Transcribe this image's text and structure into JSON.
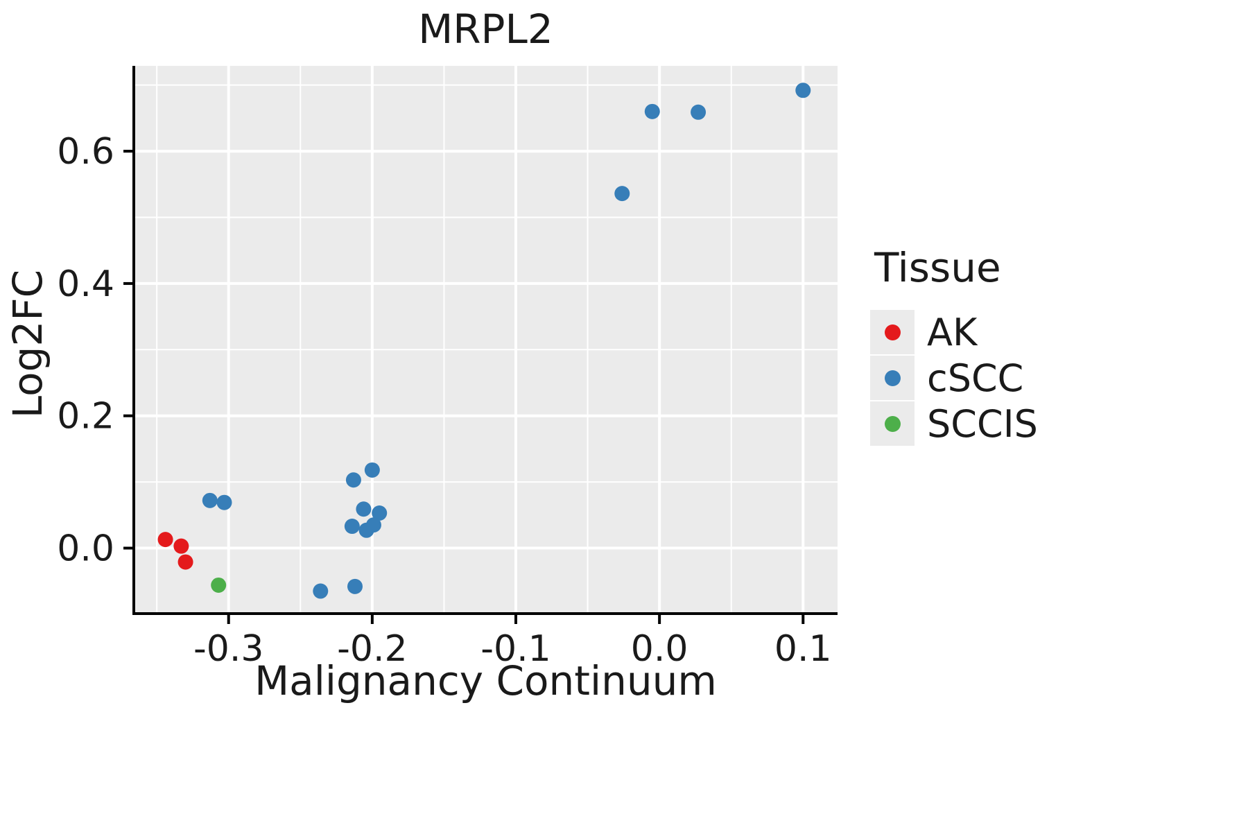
{
  "page": {
    "background": "#FFFFFF",
    "panel_background": "#EBEBEB",
    "grid_color": "#FFFFFF",
    "axis_color": "#000000",
    "text_color": "#1a1a1a"
  },
  "chart_data": {
    "type": "scatter",
    "title": "MRPL2",
    "xlabel": "Malignancy Continuum",
    "ylabel": "Log2FC",
    "legend_title": "Tissue",
    "legend_position": "right",
    "grid": true,
    "xlim": [
      -0.366,
      0.124
    ],
    "ylim": [
      -0.099,
      0.729
    ],
    "x_ticks": [
      -0.3,
      -0.2,
      -0.1,
      0.0,
      0.1
    ],
    "x_tick_labels": [
      "-0.3",
      "-0.2",
      "-0.1",
      "0.0",
      "0.1"
    ],
    "x_minor_ticks": [
      -0.35,
      -0.25,
      -0.15,
      -0.05,
      0.05
    ],
    "y_ticks": [
      0.0,
      0.2,
      0.4,
      0.6
    ],
    "y_tick_labels": [
      "0.0",
      "0.2",
      "0.4",
      "0.6"
    ],
    "y_minor_ticks": [
      0.1,
      0.3,
      0.5,
      0.7
    ],
    "point_radius": 11,
    "series": [
      {
        "name": "AK",
        "color": "#E41A1C",
        "points": [
          [
            -0.344,
            0.013
          ],
          [
            -0.333,
            0.003
          ],
          [
            -0.33,
            -0.021
          ]
        ]
      },
      {
        "name": "cSCC",
        "color": "#377EB8",
        "points": [
          [
            -0.313,
            0.072
          ],
          [
            -0.303,
            0.069
          ],
          [
            -0.236,
            -0.065
          ],
          [
            -0.212,
            -0.058
          ],
          [
            -0.213,
            0.103
          ],
          [
            -0.2,
            0.118
          ],
          [
            -0.206,
            0.059
          ],
          [
            -0.195,
            0.053
          ],
          [
            -0.214,
            0.033
          ],
          [
            -0.204,
            0.027
          ],
          [
            -0.199,
            0.035
          ],
          [
            -0.026,
            0.536
          ],
          [
            -0.005,
            0.66
          ],
          [
            0.027,
            0.659
          ],
          [
            0.1,
            0.692
          ]
        ]
      },
      {
        "name": "SCCIS",
        "color": "#4DAF4A",
        "points": [
          [
            -0.307,
            -0.056
          ]
        ]
      }
    ]
  },
  "legend": {
    "title": "Tissue",
    "items": [
      {
        "label": "AK",
        "color": "#E41A1C"
      },
      {
        "label": "cSCC",
        "color": "#377EB8"
      },
      {
        "label": "SCCIS",
        "color": "#4DAF4A"
      }
    ]
  }
}
